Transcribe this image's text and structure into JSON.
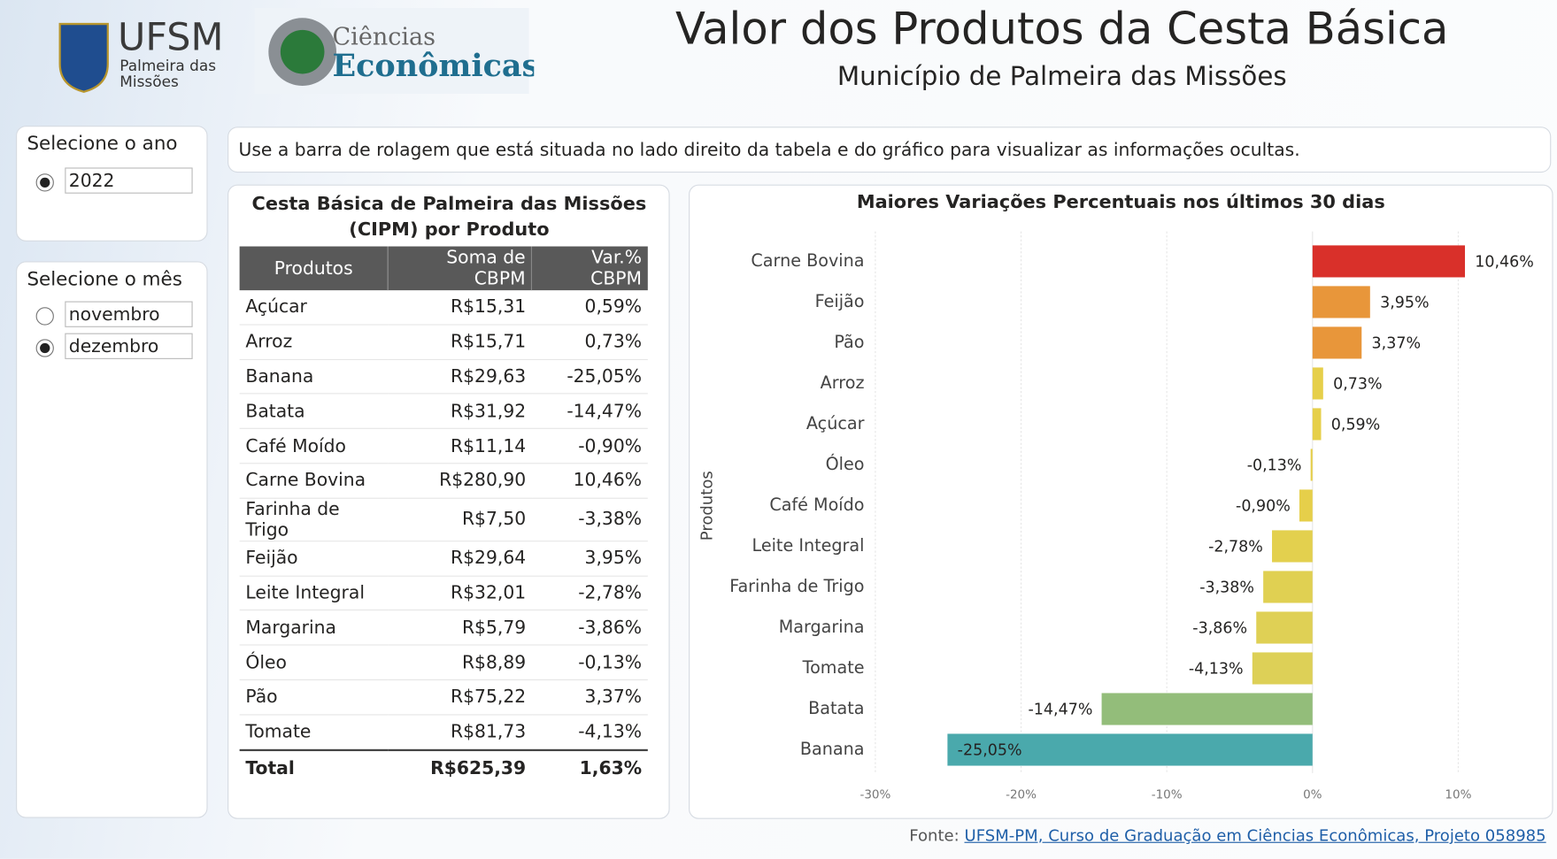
{
  "header": {
    "title": "Valor dos Produtos da Cesta Básica",
    "subtitle": "Município de Palmeira das Missões",
    "logo_ufsm": "UFSM",
    "logo_ufsm_sub": "Palmeira das Missões",
    "logo_ce_1": "Ciências",
    "logo_ce_2": "Econômicas"
  },
  "filters": {
    "year": {
      "label": "Selecione o ano",
      "options": [
        "2022"
      ]
    },
    "month": {
      "label": "Selecione o mês",
      "options": [
        "novembro",
        "dezembro"
      ]
    }
  },
  "notice": "Use a barra de rolagem que está situada no lado direito da tabela e do gráfico para visualizar as informações ocultas.",
  "table": {
    "title": "Cesta Básica de Palmeira das Missões (CIPM) por Produto",
    "columns": [
      "Produtos",
      "Soma de CBPM",
      "Var.% CBPM"
    ],
    "rows": [
      [
        "Açúcar",
        "R$15,31",
        "0,59%"
      ],
      [
        "Arroz",
        "R$15,71",
        "0,73%"
      ],
      [
        "Banana",
        "R$29,63",
        "-25,05%"
      ],
      [
        "Batata",
        "R$31,92",
        "-14,47%"
      ],
      [
        "Café Moído",
        "R$11,14",
        "-0,90%"
      ],
      [
        "Carne Bovina",
        "R$280,90",
        "10,46%"
      ],
      [
        "Farinha de Trigo",
        "R$7,50",
        "-3,38%"
      ],
      [
        "Feijão",
        "R$29,64",
        "3,95%"
      ],
      [
        "Leite Integral",
        "R$32,01",
        "-2,78%"
      ],
      [
        "Margarina",
        "R$5,79",
        "-3,86%"
      ],
      [
        "Óleo",
        "R$8,89",
        "-0,13%"
      ],
      [
        "Pão",
        "R$75,22",
        "3,37%"
      ],
      [
        "Tomate",
        "R$81,73",
        "-4,13%"
      ]
    ],
    "total": [
      "Total",
      "R$625,39",
      "1,63%"
    ]
  },
  "chart_data": {
    "type": "hbar",
    "title": "Maiores Variações Percentuais nos últimos 30 dias",
    "y_label": "Produtos",
    "categories": [
      "Carne Bovina",
      "Feijão",
      "Pão",
      "Arroz",
      "Açúcar",
      "Óleo",
      "Café Moído",
      "Leite Integral",
      "Farinha de Trigo",
      "Margarina",
      "Tomate",
      "Batata",
      "Banana"
    ],
    "values": [
      10.46,
      3.95,
      3.37,
      0.73,
      0.59,
      -0.13,
      -0.9,
      -2.78,
      -3.38,
      -3.86,
      -4.13,
      -14.47,
      -25.05
    ],
    "value_labels": [
      "10,46%",
      "3,95%",
      "3,37%",
      "0,73%",
      "0,59%",
      "-0,13%",
      "-0,90%",
      "-2,78%",
      "-3,38%",
      "-3,86%",
      "-4,13%",
      "-14,47%",
      "-25,05%"
    ],
    "colors": [
      "#d9302a",
      "#e8963a",
      "#e8963a",
      "#e6cf4a",
      "#e6cf4a",
      "#e6cf4a",
      "#e6cf4a",
      "#e3d04e",
      "#e0d052",
      "#dfd055",
      "#ddd057",
      "#93bd7a",
      "#4aa9ac"
    ],
    "xlim": [
      -30,
      15
    ],
    "xticks": [
      {
        "value": -30,
        "label": "-30%"
      },
      {
        "value": -20,
        "label": "-20%"
      },
      {
        "value": -10,
        "label": "-10%"
      },
      {
        "value": 0,
        "label": "0%"
      },
      {
        "value": 10,
        "label": "10%"
      }
    ],
    "grid": true
  },
  "footer": {
    "prefix": "Fonte:",
    "link": "UFSM-PM, Curso de Graduação em Ciências Econômicas, Projeto 058985"
  }
}
